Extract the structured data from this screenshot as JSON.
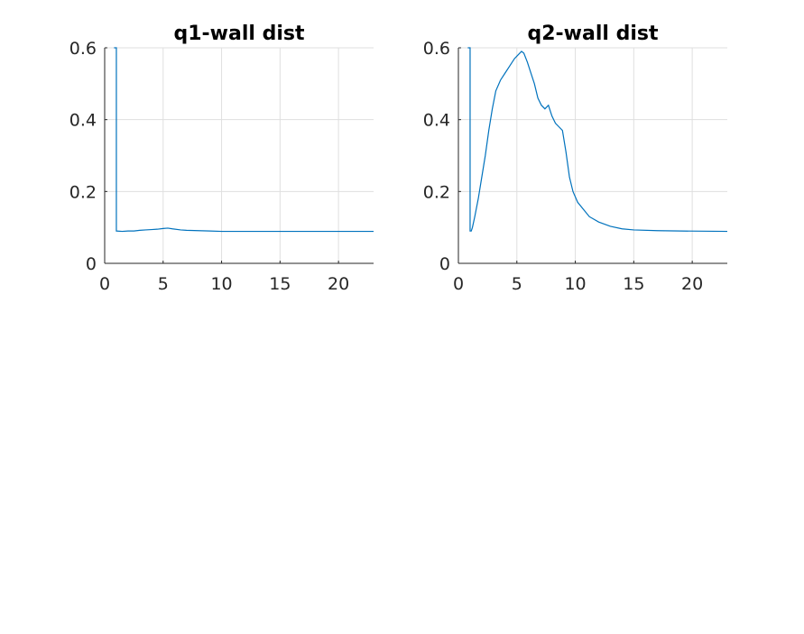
{
  "figure": {
    "background": "#ffffff"
  },
  "chart_data": [
    {
      "type": "line",
      "title": "q1-wall dist",
      "xlabel": "",
      "ylabel": "",
      "xlim": [
        0,
        23
      ],
      "ylim": [
        0,
        0.6
      ],
      "xticks": [
        0,
        5,
        10,
        15,
        20
      ],
      "xtick_labels": [
        "0",
        "5",
        "10",
        "15",
        "20"
      ],
      "yticks": [
        0,
        0.2,
        0.4,
        0.6
      ],
      "ytick_labels": [
        "0",
        "0.2",
        "0.4",
        "0.6"
      ],
      "grid": true,
      "series": [
        {
          "name": "q1",
          "color": "#0072bd",
          "x": [
            0.8,
            0.9,
            1.0,
            1.0,
            1.5,
            2.0,
            2.5,
            3.0,
            3.5,
            4.0,
            4.5,
            5.0,
            5.4,
            5.8,
            6.5,
            7.0,
            8.0,
            9.0,
            10.0,
            12.0,
            15.0,
            18.0,
            20.0,
            23.0
          ],
          "y": [
            0.6,
            0.6,
            0.6,
            0.09,
            0.089,
            0.09,
            0.09,
            0.092,
            0.093,
            0.094,
            0.095,
            0.097,
            0.098,
            0.096,
            0.093,
            0.092,
            0.091,
            0.09,
            0.089,
            0.089,
            0.089,
            0.089,
            0.089,
            0.089
          ]
        }
      ]
    },
    {
      "type": "line",
      "title": "q2-wall dist",
      "xlabel": "",
      "ylabel": "",
      "xlim": [
        0,
        23
      ],
      "ylim": [
        0,
        0.6
      ],
      "xticks": [
        0,
        5,
        10,
        15,
        20
      ],
      "xtick_labels": [
        "0",
        "5",
        "10",
        "15",
        "20"
      ],
      "yticks": [
        0,
        0.2,
        0.4,
        0.6
      ],
      "ytick_labels": [
        "0",
        "0.2",
        "0.4",
        "0.6"
      ],
      "grid": true,
      "series": [
        {
          "name": "q2",
          "color": "#0072bd",
          "x": [
            0.8,
            0.9,
            1.0,
            1.0,
            1.1,
            1.2,
            1.4,
            1.7,
            2.0,
            2.3,
            2.6,
            2.9,
            3.2,
            3.6,
            4.0,
            4.4,
            4.8,
            5.1,
            5.4,
            5.6,
            5.9,
            6.2,
            6.5,
            6.8,
            7.1,
            7.4,
            7.7,
            8.0,
            8.3,
            8.6,
            8.9,
            9.2,
            9.5,
            9.8,
            10.2,
            10.7,
            11.2,
            12.0,
            13.0,
            14.0,
            15.0,
            17.0,
            19.0,
            23.0
          ],
          "y": [
            0.6,
            0.6,
            0.6,
            0.09,
            0.09,
            0.1,
            0.13,
            0.18,
            0.24,
            0.3,
            0.37,
            0.43,
            0.48,
            0.51,
            0.53,
            0.55,
            0.57,
            0.58,
            0.59,
            0.585,
            0.56,
            0.53,
            0.5,
            0.46,
            0.44,
            0.43,
            0.44,
            0.41,
            0.39,
            0.38,
            0.37,
            0.31,
            0.24,
            0.2,
            0.17,
            0.15,
            0.13,
            0.115,
            0.103,
            0.096,
            0.093,
            0.091,
            0.09,
            0.089
          ]
        }
      ]
    }
  ]
}
